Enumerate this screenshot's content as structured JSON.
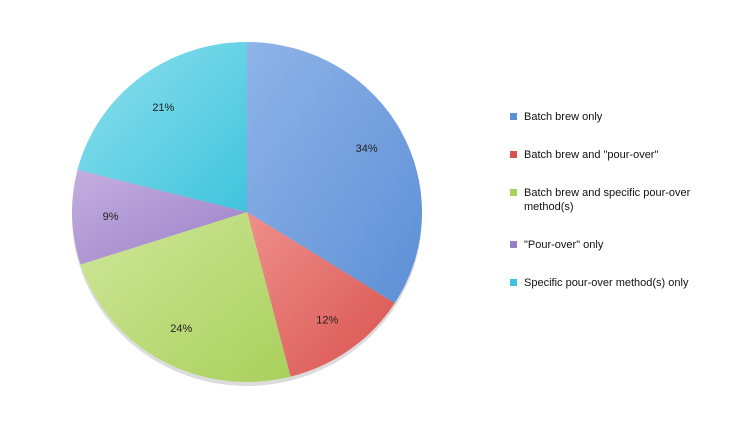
{
  "chart_data": {
    "type": "pie",
    "title": "",
    "legend_position": "right",
    "slices": [
      {
        "label": "Batch brew only",
        "value": 34,
        "display": "34%",
        "color": "#8fb4e8",
        "color_dark": "#5d8fd6"
      },
      {
        "label": "Batch brew and \"pour-over\"",
        "value": 12,
        "display": "12%",
        "color": "#ee8f8b",
        "color_dark": "#d9534f"
      },
      {
        "label": "Batch brew and specific pour-over method(s)",
        "value": 24,
        "display": "24%",
        "color": "#cfe79a",
        "color_dark": "#a9d05c"
      },
      {
        "label": "\"Pour-over\" only",
        "value": 9,
        "display": "9%",
        "color": "#c4afe0",
        "color_dark": "#9b7fc6"
      },
      {
        "label": "Specific pour-over method(s) only",
        "value": 21,
        "display": "21%",
        "color": "#8fe0ee",
        "color_dark": "#3fc4dc"
      }
    ]
  }
}
